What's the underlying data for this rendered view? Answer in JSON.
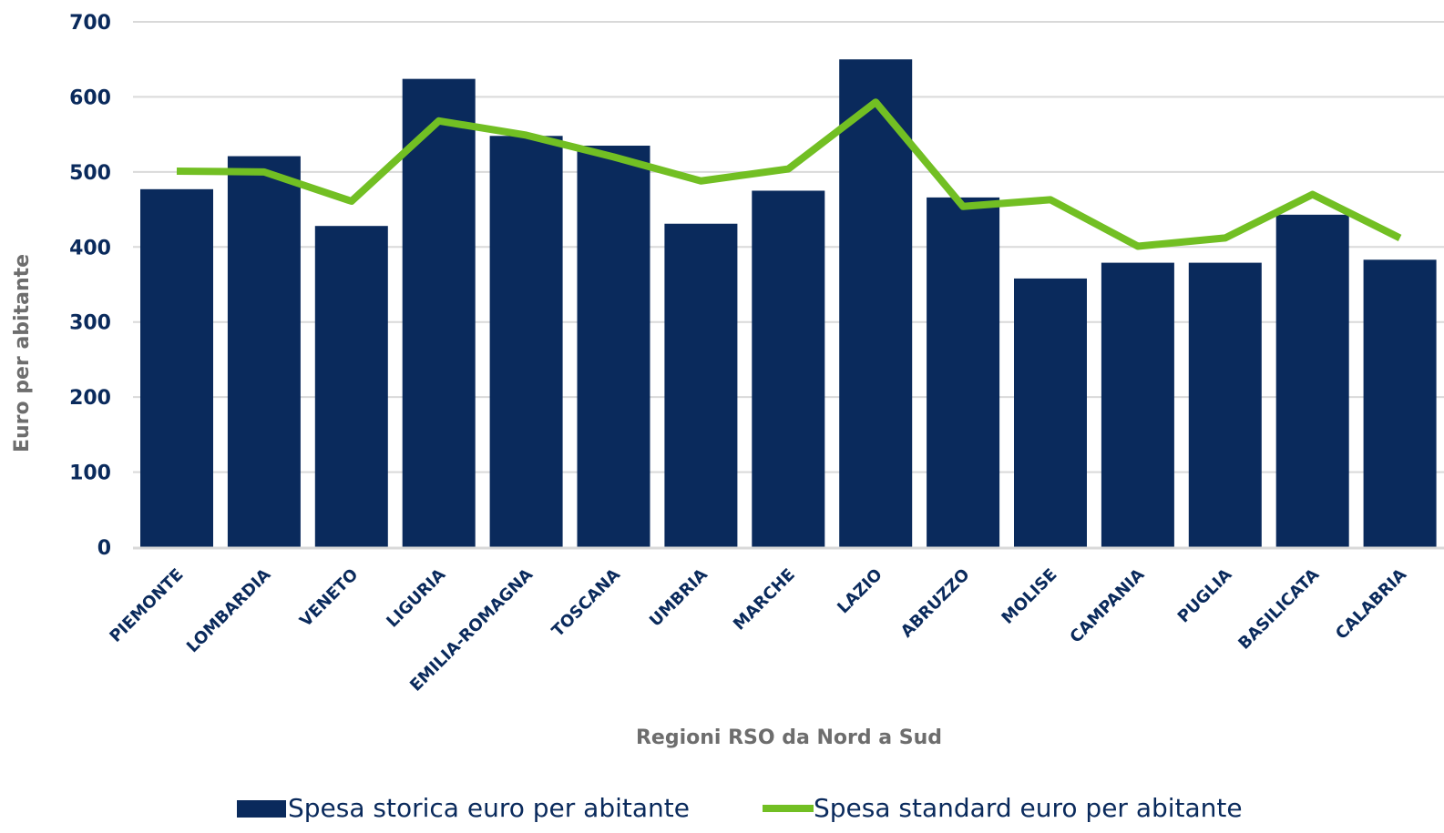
{
  "chart_data": {
    "type": "bar",
    "categories": [
      "PIEMONTE",
      "LOMBARDIA",
      "VENETO",
      "LIGURIA",
      "EMILIA-ROMAGNA",
      "TOSCANA",
      "UMBRIA",
      "MARCHE",
      "LAZIO",
      "ABRUZZO",
      "MOLISE",
      "CAMPANIA",
      "PUGLIA",
      "BASILICATA",
      "CALABRIA"
    ],
    "series": [
      {
        "name": "Spesa storica euro per abitante",
        "type": "bar",
        "values": [
          477,
          521,
          428,
          624,
          548,
          535,
          431,
          475,
          650,
          466,
          358,
          379,
          379,
          443,
          383
        ]
      },
      {
        "name": "Spesa standard euro per abitante",
        "type": "line",
        "values": [
          501,
          500,
          461,
          568,
          549,
          520,
          488,
          504,
          593,
          454,
          463,
          401,
          412,
          470,
          412
        ]
      }
    ],
    "title": "",
    "xlabel": "Regioni RSO da Nord a Sud",
    "ylabel": "Euro per abitante",
    "ylim": [
      0,
      700
    ],
    "yticks": [
      0,
      100,
      200,
      300,
      400,
      500,
      600,
      700
    ],
    "grid": true,
    "legend_position": "bottom"
  },
  "colors": {
    "bar": "#0a2a5c",
    "line": "#72bf23",
    "grid": "#d9d9d9",
    "tick_text": "#0a2a5c",
    "axis_title": "#6d6d6d"
  }
}
